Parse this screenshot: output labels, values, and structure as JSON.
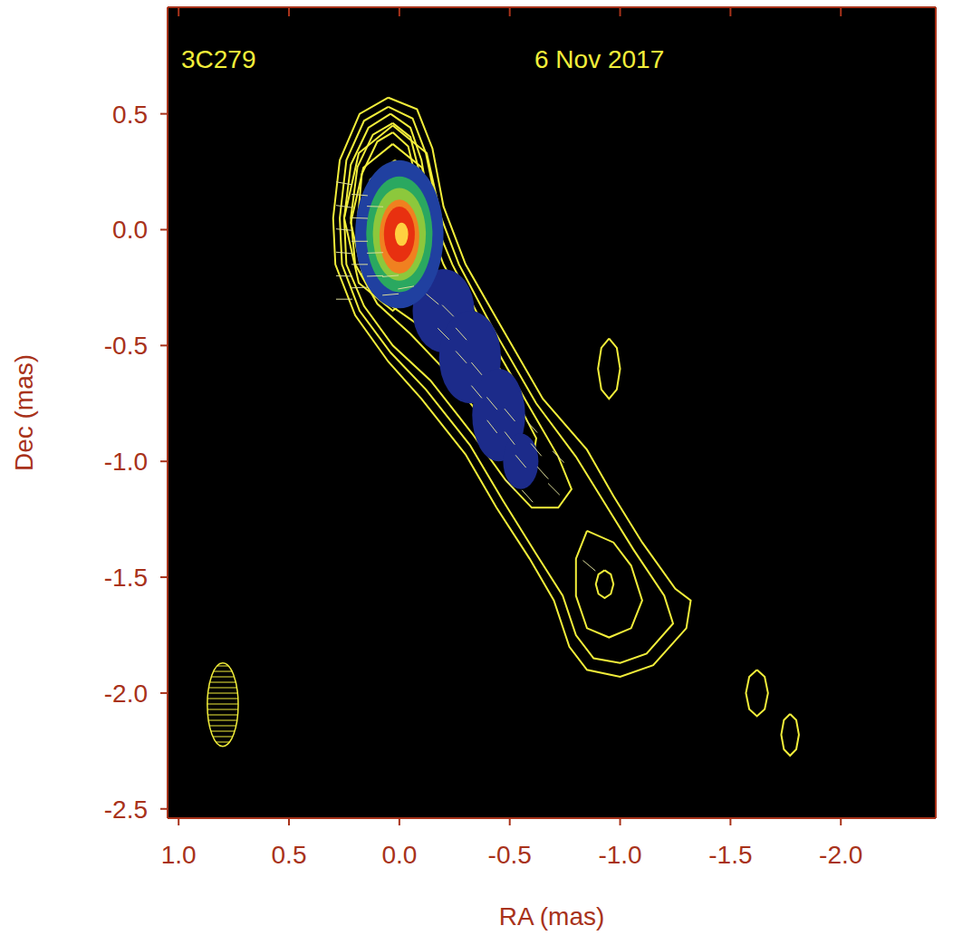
{
  "chart_data": {
    "type": "contour",
    "title": "3C279",
    "subtitle": "6 Nov 2017",
    "x_label": "RA (mas)",
    "y_label": "Dec (mas)",
    "xlim": [
      1.05,
      -2.43
    ],
    "ylim": [
      -2.54,
      0.96
    ],
    "xticks": [
      {
        "value": 1,
        "label": "1.0"
      },
      0.5,
      {
        "value": 0,
        "label": "0.0"
      },
      -0.5,
      {
        "value": -1,
        "label": "-1.0"
      },
      -1.5,
      {
        "value": -2,
        "label": "-2.0"
      }
    ],
    "yticks": [
      0.5,
      {
        "value": 0,
        "label": "0.0"
      },
      -0.5,
      {
        "value": -1,
        "label": "-1.0"
      },
      -1.5,
      {
        "value": -2,
        "label": "-2.0"
      },
      -2.5
    ],
    "color": "#f2ee3a",
    "image": [
      {
        "x": -0.2,
        "y": -0.35,
        "rx": 0.14,
        "ry": 0.18,
        "color": "#1c2b8a"
      },
      {
        "x": -0.32,
        "y": -0.55,
        "rx": 0.14,
        "ry": 0.2,
        "color": "#1c2b8a"
      },
      {
        "x": -0.45,
        "y": -0.8,
        "rx": 0.12,
        "ry": 0.2,
        "color": "#1c2b8a"
      },
      {
        "x": -0.55,
        "y": -1.0,
        "rx": 0.08,
        "ry": 0.12,
        "color": "#1c2b8a"
      },
      {
        "x": 0.0,
        "y": -0.02,
        "rx": 0.2,
        "ry": 0.32,
        "color": "#2040a0"
      },
      {
        "x": 0.0,
        "y": -0.02,
        "rx": 0.15,
        "ry": 0.25,
        "color": "#2aa860"
      },
      {
        "x": 0.0,
        "y": -0.02,
        "rx": 0.12,
        "ry": 0.2,
        "color": "#8cc83c"
      },
      {
        "x": 0.0,
        "y": -0.03,
        "rx": 0.09,
        "ry": 0.16,
        "color": "#f08020"
      },
      {
        "x": 0.0,
        "y": -0.02,
        "rx": 0.07,
        "ry": 0.12,
        "color": "#e83010"
      },
      {
        "x": -0.01,
        "y": -0.02,
        "rx": 0.03,
        "ry": 0.05,
        "color": "#ffd040"
      }
    ],
    "contours": [
      {
        "x": [
          0.05,
          -0.08,
          -0.15,
          -0.2,
          -0.3,
          -0.45,
          -0.65,
          -0.85,
          -0.97,
          -1.1,
          -1.25,
          -1.32,
          -1.3,
          -1.15,
          -1.0,
          -0.85,
          -0.77,
          -0.7,
          -0.59,
          -0.44,
          -0.3,
          -0.1,
          0.05,
          0.2,
          0.29,
          0.3,
          0.27,
          0.18
        ],
        "y": [
          0.57,
          0.52,
          0.35,
          0.1,
          -0.15,
          -0.4,
          -0.73,
          -0.95,
          -1.15,
          -1.35,
          -1.55,
          -1.6,
          -1.72,
          -1.88,
          -1.93,
          -1.9,
          -1.8,
          -1.6,
          -1.42,
          -1.2,
          -0.97,
          -0.73,
          -0.57,
          -0.37,
          -0.15,
          0.05,
          0.3,
          0.5
        ]
      },
      {
        "x": [
          0.05,
          -0.06,
          -0.12,
          -0.17,
          -0.27,
          -0.42,
          -0.62,
          -0.8,
          -0.93,
          -1.06,
          -1.2,
          -1.24,
          -1.12,
          -1.0,
          -0.88,
          -0.8,
          -0.74,
          -0.62,
          -0.47,
          -0.32,
          -0.12,
          0.04,
          0.18,
          0.26,
          0.27,
          0.24,
          0.16
        ],
        "y": [
          0.53,
          0.48,
          0.33,
          0.1,
          -0.15,
          -0.42,
          -0.75,
          -0.98,
          -1.18,
          -1.38,
          -1.58,
          -1.7,
          -1.83,
          -1.87,
          -1.85,
          -1.75,
          -1.58,
          -1.4,
          -1.17,
          -0.93,
          -0.69,
          -0.53,
          -0.35,
          -0.15,
          0.05,
          0.3,
          0.47
        ]
      },
      {
        "x": [
          0.04,
          -0.05,
          -0.1,
          -0.14,
          -0.24,
          -0.4,
          -0.58,
          -0.72,
          -0.78,
          -0.72,
          -0.6,
          -0.48,
          -0.33,
          -0.14,
          0.03,
          0.16,
          0.24,
          0.25,
          0.22,
          0.14
        ],
        "y": [
          0.5,
          0.44,
          0.3,
          0.08,
          -0.15,
          -0.45,
          -0.75,
          -0.98,
          -1.12,
          -1.2,
          -1.2,
          -1.08,
          -0.88,
          -0.65,
          -0.5,
          -0.33,
          -0.15,
          0.05,
          0.28,
          0.44
        ]
      },
      {
        "x": [
          0.03,
          -0.05,
          -0.09,
          -0.12,
          -0.2,
          -0.34,
          -0.5,
          -0.62,
          -0.6,
          -0.5,
          -0.38,
          -0.2,
          -0.05,
          0.1,
          0.2,
          0.22,
          0.19,
          0.12
        ],
        "y": [
          0.46,
          0.4,
          0.25,
          0.05,
          -0.15,
          -0.4,
          -0.68,
          -0.9,
          -1.02,
          -0.98,
          -0.82,
          -0.6,
          -0.45,
          -0.32,
          -0.15,
          0.05,
          0.27,
          0.41
        ]
      },
      {
        "x": [
          0.03,
          -0.04,
          -0.08,
          -0.1,
          -0.16,
          -0.25,
          -0.3,
          -0.22,
          -0.1,
          0.05,
          0.15,
          0.19,
          0.17,
          0.1
        ],
        "y": [
          0.42,
          0.36,
          0.2,
          0.0,
          -0.18,
          -0.35,
          -0.5,
          -0.52,
          -0.42,
          -0.32,
          -0.18,
          0.03,
          0.24,
          0.38
        ]
      },
      {
        "x": [
          0.03,
          0.184,
          0.25,
          0.184,
          0.03,
          -0.124,
          -0.19,
          -0.124
        ],
        "y": [
          0.45,
          0.33,
          0.05,
          -0.23,
          -0.35,
          -0.23,
          0.05,
          0.33
        ]
      },
      {
        "x": [
          0.03,
          0.163,
          0.22,
          0.163,
          0.03,
          -0.103,
          -0.16,
          -0.103
        ],
        "y": [
          0.37,
          0.268,
          0.03,
          -0.208,
          -0.31,
          -0.208,
          0.03,
          0.268
        ]
      },
      {
        "x": [
          0.02,
          0.132,
          0.18,
          0.132,
          0.02,
          -0.092,
          -0.14,
          -0.092
        ],
        "y": [
          0.3,
          0.216,
          0.02,
          -0.176,
          -0.26,
          -0.176,
          0.02,
          0.216
        ]
      },
      {
        "x": [
          0.02,
          0.111,
          0.15,
          0.111,
          0.02,
          -0.071,
          -0.11,
          -0.071
        ],
        "y": [
          0.22,
          0.154,
          0.0,
          -0.154,
          -0.22,
          -0.154,
          0.0,
          0.154
        ]
      },
      {
        "x": [
          0.01,
          0.08,
          0.11,
          0.08,
          0.01,
          -0.06,
          -0.09,
          -0.06
        ],
        "y": [
          0.15,
          0.102,
          -0.01,
          -0.122,
          -0.17,
          -0.122,
          -0.01,
          0.102
        ]
      },
      {
        "x": [
          0.0,
          0.042,
          0.06,
          0.042,
          0.0,
          -0.042,
          -0.06,
          -0.042
        ],
        "y": [
          0.08,
          0.05,
          -0.02,
          -0.09,
          -0.12,
          -0.09,
          -0.02,
          0.05
        ]
      },
      {
        "x": [
          0.0,
          0.021,
          0.03,
          0.021,
          0.0,
          -0.021,
          -0.03,
          -0.021
        ],
        "y": [
          0.03,
          0.015,
          -0.02,
          -0.055,
          -0.07,
          -0.055,
          -0.02,
          0.015
        ]
      },
      {
        "x": [
          -0.85,
          -0.97,
          -1.05,
          -1.1,
          -1.05,
          -0.95,
          -0.85,
          -0.8,
          -0.8
        ],
        "y": [
          -1.3,
          -1.35,
          -1.45,
          -1.6,
          -1.72,
          -1.76,
          -1.72,
          -1.58,
          -1.42
        ]
      },
      {
        "x": [
          -0.93,
          -0.958,
          -0.97,
          -0.958,
          -0.93,
          -0.902,
          -0.89,
          -0.902
        ],
        "y": [
          -1.47,
          -1.488,
          -1.53,
          -1.572,
          -1.59,
          -1.572,
          -1.53,
          -1.488
        ]
      },
      {
        "x": [
          -0.95,
          -0.985,
          -1.0,
          -0.985,
          -0.95,
          -0.915,
          -0.9,
          -0.915
        ],
        "y": [
          -0.47,
          -0.51,
          -0.6,
          -0.69,
          -0.73,
          -0.69,
          -0.6,
          -0.51
        ]
      },
      {
        "x": [
          -1.62,
          -1.655,
          -1.67,
          -1.655,
          -1.62,
          -1.585,
          -1.57,
          -1.585
        ],
        "y": [
          -1.9,
          -1.93,
          -2.0,
          -2.07,
          -2.1,
          -2.07,
          -2.0,
          -1.93
        ]
      },
      {
        "x": [
          -1.77,
          -1.798,
          -1.81,
          -1.798,
          -1.77,
          -1.742,
          -1.73,
          -1.742
        ],
        "y": [
          -2.09,
          -2.117,
          -2.18,
          -2.243,
          -2.27,
          -2.243,
          -2.18,
          -2.117
        ]
      }
    ],
    "polarization": {
      "x": [
        0.25,
        0.25,
        0.25,
        0.25,
        0.25,
        0.25,
        0.18,
        0.18,
        0.18,
        0.18,
        0.18,
        0.11,
        0.11,
        0.11,
        0.04,
        0.04,
        -0.03,
        -0.15,
        -0.22,
        -0.2,
        -0.28,
        -0.28,
        -0.35,
        -0.35,
        -0.42,
        -0.42,
        -0.5,
        -0.5,
        -0.55,
        -0.6,
        -0.62,
        -0.65,
        -0.7,
        -0.72,
        -0.5,
        -0.58,
        -0.86
      ],
      "y": [
        0.2,
        0.1,
        0.0,
        -0.1,
        -0.2,
        -0.3,
        0.15,
        0.05,
        -0.05,
        -0.15,
        -0.25,
        0.1,
        -0.1,
        -0.2,
        -0.2,
        -0.28,
        -0.25,
        -0.3,
        -0.35,
        -0.45,
        -0.45,
        -0.55,
        -0.6,
        -0.7,
        -0.75,
        -0.85,
        -0.8,
        -0.9,
        -1.0,
        -0.85,
        -0.95,
        -1.05,
        -1.12,
        -0.98,
        -1.1,
        -1.15,
        -1.45
      ],
      "evpa": [
        80,
        82,
        85,
        85,
        88,
        90,
        85,
        88,
        90,
        90,
        92,
        88,
        92,
        92,
        95,
        95,
        100,
        50,
        45,
        45,
        42,
        42,
        40,
        40,
        40,
        38,
        40,
        38,
        40,
        42,
        40,
        42,
        45,
        45,
        40,
        42,
        50
      ]
    },
    "beam": {
      "x": 0.8,
      "y": -2.05,
      "major": 0.36,
      "minor": 0.14
    }
  }
}
